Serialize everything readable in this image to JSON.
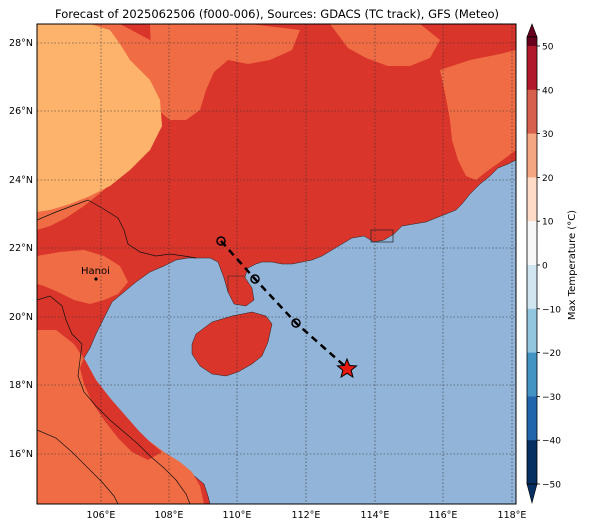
{
  "title": "Forecast of 2025062506 (f000-006), Sources: GDACS (TC track), GFS (Meteo)",
  "map": {
    "lon_ticks": [
      "106°E",
      "108°E",
      "110°E",
      "112°E",
      "114°E",
      "116°E",
      "118°E"
    ],
    "lat_ticks": [
      "28°N",
      "26°N",
      "24°N",
      "22°N",
      "20°N",
      "18°N",
      "16°N"
    ],
    "cities": [
      {
        "label": "Hanoi"
      }
    ],
    "track": {
      "positions_labelled": "circles",
      "current_marker": "star",
      "colors": {
        "track_line": "#000000",
        "star": "#e8180f"
      }
    },
    "colors": {
      "sea": "#91b4d8",
      "land_hot": "#d9352b",
      "land_warm": "#f06c44",
      "land_mild": "#fdb36b"
    }
  },
  "colorbar": {
    "label": "Max Temperature (°C)",
    "ticks": [
      "50",
      "40",
      "30",
      "20",
      "10",
      "0",
      "−10",
      "−20",
      "−30",
      "−40",
      "−50"
    ],
    "colors": [
      "#67001f",
      "#b2182b",
      "#d6604d",
      "#f4a582",
      "#fddbc7",
      "#f7f7f7",
      "#d1e5f0",
      "#92c5de",
      "#4393c3",
      "#2166ac",
      "#053061"
    ]
  }
}
